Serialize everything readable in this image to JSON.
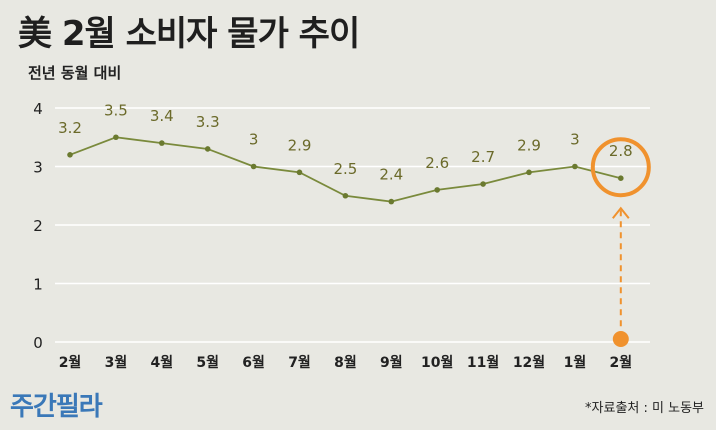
{
  "header": {
    "title": "美 2월 소비자 물가 추이",
    "subtitle": "전년 동월 대비"
  },
  "footer": {
    "logo_text": "주간필라",
    "source": "*자료출처 : 미 노동부"
  },
  "colors": {
    "line": "#7a8a3c",
    "point": "#6b7a30",
    "label": "#6b6a2a",
    "highlight": "#f0922e",
    "grid": "#ffffff",
    "background": "#e8e8e2",
    "logo": "#3a78b8"
  },
  "chart_data": {
    "type": "line",
    "title": "美 2월 소비자 물가 추이",
    "ylabel": "전년 동월 대비",
    "xlabel": "",
    "categories": [
      "2월",
      "3월",
      "4월",
      "5월",
      "6월",
      "7월",
      "8월",
      "9월",
      "10월",
      "11월",
      "12월",
      "1월",
      "2월"
    ],
    "values": [
      3.2,
      3.5,
      3.4,
      3.3,
      3.0,
      2.9,
      2.5,
      2.4,
      2.6,
      2.7,
      2.9,
      3.0,
      2.8
    ],
    "data_labels": [
      "3.2",
      "3.5",
      "3.4",
      "3.3",
      "3",
      "2.9",
      "2.5",
      "2.4",
      "2.6",
      "2.7",
      "2.9",
      "3",
      "2.8"
    ],
    "yticks": [
      0,
      1,
      2,
      3,
      4
    ],
    "ylim": [
      0,
      4
    ],
    "grid": true,
    "highlight_index": 12
  }
}
